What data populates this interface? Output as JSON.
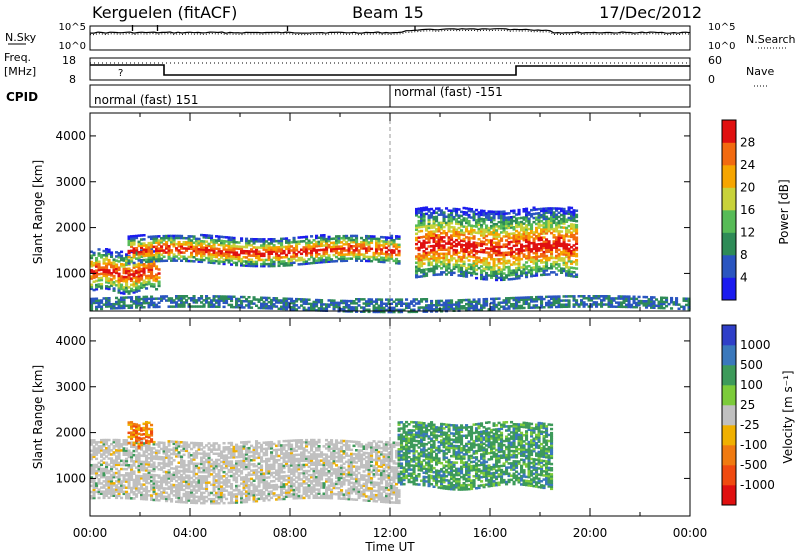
{
  "header": {
    "station": "Kerguelen (fitACF)",
    "beam": "Beam 15",
    "date": "17/Dec/2012"
  },
  "strip": {
    "nsky_label": "N.Sky",
    "nsky_ticks": [
      "10^5",
      "10^0"
    ],
    "nsearch_label": "N.Search",
    "nsearch_ticks": [
      "10^5",
      "10^0"
    ],
    "freq_label": "Freq.",
    "freq_unit": "[MHz]",
    "freq_ticks": [
      "18",
      "8"
    ],
    "nave_label": "Nave",
    "nave_ticks": [
      "60",
      "0"
    ],
    "question_mark": "?",
    "cpid_label": "CPID",
    "cpid_entries": [
      "normal (fast) 151",
      "normal (fast) -151"
    ]
  },
  "chart_data": [
    {
      "type": "heatmap",
      "panel": "power",
      "ylabel": "Slant Range [km]",
      "xlabel": "",
      "xlim": [
        "00:00",
        "24:00"
      ],
      "ylim": [
        180,
        4500
      ],
      "x_ticks": [
        "00:00",
        "04:00",
        "08:00",
        "12:00",
        "16:00",
        "20:00",
        "00:00"
      ],
      "y_ticks": [
        "1000",
        "2000",
        "3000",
        "4000"
      ],
      "colorbar": {
        "label": "Power [dB]",
        "ticks": [
          "4",
          "8",
          "12",
          "16",
          "20",
          "24",
          "28"
        ],
        "colors": [
          "#1b1bef",
          "#2a55c0",
          "#2e8b57",
          "#57bb57",
          "#c8d23a",
          "#f6a500",
          "#f26a10",
          "#e01010"
        ]
      },
      "echo_bands": [
        {
          "start_h": 0.0,
          "end_h": 2.8,
          "range_km": [
            600,
            1500
          ],
          "level": "high"
        },
        {
          "start_h": 1.5,
          "end_h": 12.3,
          "range_km": [
            1200,
            1800
          ],
          "level": "high"
        },
        {
          "start_h": 13.0,
          "end_h": 19.5,
          "range_km": [
            900,
            2400
          ],
          "level": "high"
        },
        {
          "start_h": 0.0,
          "end_h": 24.0,
          "range_km": [
            200,
            450
          ],
          "level": "low"
        }
      ]
    },
    {
      "type": "heatmap",
      "panel": "velocity",
      "ylabel": "Slant Range [km]",
      "xlabel": "Time UT",
      "xlim": [
        "00:00",
        "24:00"
      ],
      "ylim": [
        180,
        4500
      ],
      "x_ticks": [
        "00:00",
        "04:00",
        "08:00",
        "12:00",
        "16:00",
        "20:00",
        "00:00"
      ],
      "y_ticks": [
        "1000",
        "2000",
        "3000",
        "4000"
      ],
      "colorbar": {
        "label": "Velocity [m s⁻¹]",
        "ticks": [
          "1000",
          "500",
          "100",
          "25",
          "-25",
          "-100",
          "-500",
          "-1000"
        ],
        "colors": [
          "#2f3fc8",
          "#3a78bc",
          "#3d9a5a",
          "#7ccb3a",
          "#c0c0c0",
          "#f0b000",
          "#f07a10",
          "#f04a10",
          "#e01010"
        ]
      },
      "echo_bands": [
        {
          "start_h": 0.0,
          "end_h": 12.3,
          "range_km": [
            500,
            1800
          ],
          "level": "ground-scatter"
        },
        {
          "start_h": 12.3,
          "end_h": 18.5,
          "range_km": [
            800,
            2200
          ],
          "level": "positive"
        },
        {
          "start_h": 1.5,
          "end_h": 2.5,
          "range_km": [
            1700,
            2200
          ],
          "level": "negative"
        }
      ]
    }
  ]
}
